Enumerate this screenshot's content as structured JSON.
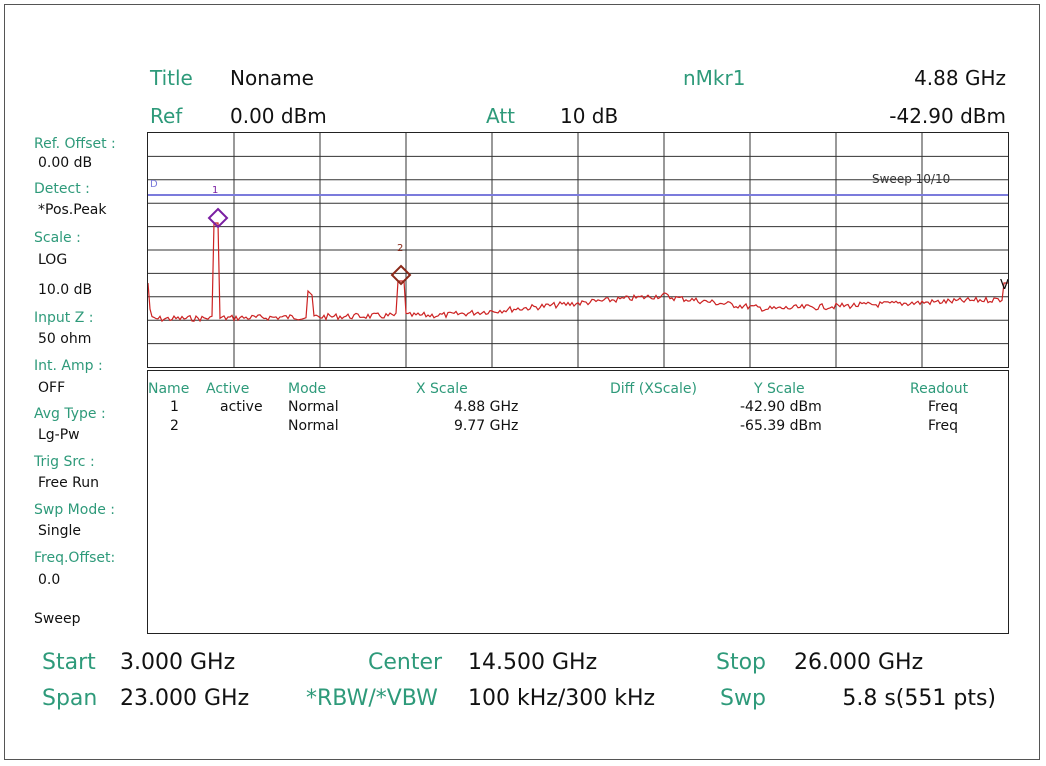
{
  "header": {
    "title_label": "Title",
    "title_value": "Noname",
    "ref_label": "Ref",
    "ref_value": "0.00 dBm",
    "att_label": "Att",
    "att_value": "10 dB",
    "marker_label": "nMkr1",
    "marker_freq": "4.88 GHz",
    "marker_level": "-42.90 dBm"
  },
  "sidebar": [
    {
      "label": "Ref. Offset :",
      "value": "0.00 dB"
    },
    {
      "label": "Detect :",
      "value": "*Pos.Peak"
    },
    {
      "label": "Scale :",
      "value": "LOG"
    },
    {
      "label": "",
      "value": "10.0 dB"
    },
    {
      "label": "Input Z :",
      "value": "50 ohm"
    },
    {
      "label": "Int. Amp :",
      "value": "OFF"
    },
    {
      "label": "Avg Type :",
      "value": "Lg-Pw"
    },
    {
      "label": "Trig Src :",
      "value": "Free Run"
    },
    {
      "label": "Swp Mode :",
      "value": "Single"
    },
    {
      "label": "Freq.Offset:",
      "value": "0.0"
    },
    {
      "label": "",
      "value": "Sweep"
    }
  ],
  "graph": {
    "sweep_text": "Sweep 10/10",
    "display_line_label": "D",
    "marker1_label": "1",
    "marker2_label": "2",
    "trace_color": "#cc2222",
    "display_line_color": "#7b7bdc",
    "marker1_color": "#7a1fa2",
    "marker2_color": "#8b2a1a"
  },
  "marker_table": {
    "headers": [
      "Name",
      "Active",
      "Mode",
      "X Scale",
      "Diff (XScale)",
      "Y Scale",
      "Readout"
    ],
    "rows": [
      {
        "name": "1",
        "active": "active",
        "mode": "Normal",
        "x": "4.88 GHz",
        "diff": "",
        "y": "-42.90 dBm",
        "readout": "Freq"
      },
      {
        "name": "2",
        "active": "",
        "mode": "Normal",
        "x": "9.77 GHz",
        "diff": "",
        "y": "-65.39 dBm",
        "readout": "Freq"
      }
    ]
  },
  "footer": {
    "start_label": "Start",
    "start_value": "3.000 GHz",
    "center_label": "Center",
    "center_value": "14.500 GHz",
    "stop_label": "Stop",
    "stop_value": "26.000 GHz",
    "span_label": "Span",
    "span_value": "23.000 GHz",
    "rbw_label": "*RBW/*VBW",
    "rbw_value": "100 kHz/300 kHz",
    "swp_label": "Swp",
    "swp_value": "5.8 s(551 pts)"
  }
}
